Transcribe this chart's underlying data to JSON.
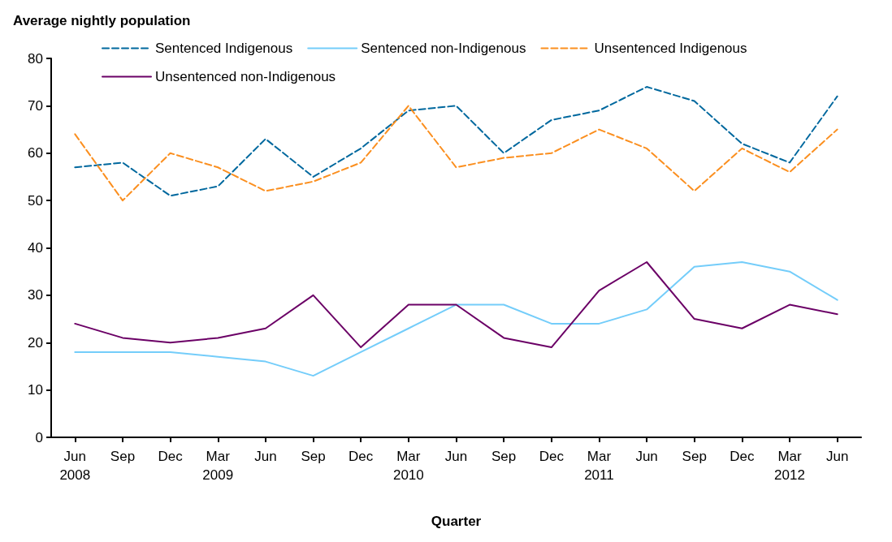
{
  "chart_data": {
    "type": "line",
    "ylabel": "Average nightly population",
    "xlabel": "Quarter",
    "categories": [
      "Jun\n2008",
      "Sep",
      "Dec",
      "Mar\n2009",
      "Jun",
      "Sep",
      "Dec",
      "Mar\n2010",
      "Jun",
      "Sep",
      "Dec",
      "Mar\n2011",
      "Jun",
      "Sep",
      "Dec",
      "Mar\n2012",
      "Jun"
    ],
    "series": [
      {
        "name": "Sentenced Indigenous",
        "color": "#00689e",
        "line_style": "dashed",
        "values": [
          57,
          58,
          51,
          53,
          63,
          55,
          61,
          69,
          70,
          60,
          67,
          69,
          74,
          71,
          62,
          58,
          72
        ]
      },
      {
        "name": "Sentenced non-Indigenous",
        "color": "#74cdfa",
        "line_style": "solid",
        "values": [
          18,
          18,
          18,
          17,
          16,
          13,
          18,
          23,
          28,
          28,
          24,
          24,
          27,
          36,
          37,
          35,
          29
        ]
      },
      {
        "name": "Unsentenced Indigenous",
        "color": "#fb8f1f",
        "line_style": "dashed",
        "values": [
          64,
          50,
          60,
          57,
          52,
          54,
          58,
          70,
          57,
          59,
          60,
          65,
          61,
          52,
          61,
          56,
          65
        ]
      },
      {
        "name": "Unsentenced non-Indigenous",
        "color": "#6b0066",
        "line_style": "solid",
        "values": [
          24,
          21,
          20,
          21,
          23,
          30,
          19,
          28,
          28,
          21,
          19,
          31,
          37,
          25,
          23,
          28,
          26
        ]
      }
    ],
    "ylim": [
      0,
      80
    ],
    "yticks": [
      0,
      10,
      20,
      30,
      40,
      50,
      60,
      70,
      80
    ],
    "grid": false,
    "legend": "top",
    "marker": "none"
  }
}
